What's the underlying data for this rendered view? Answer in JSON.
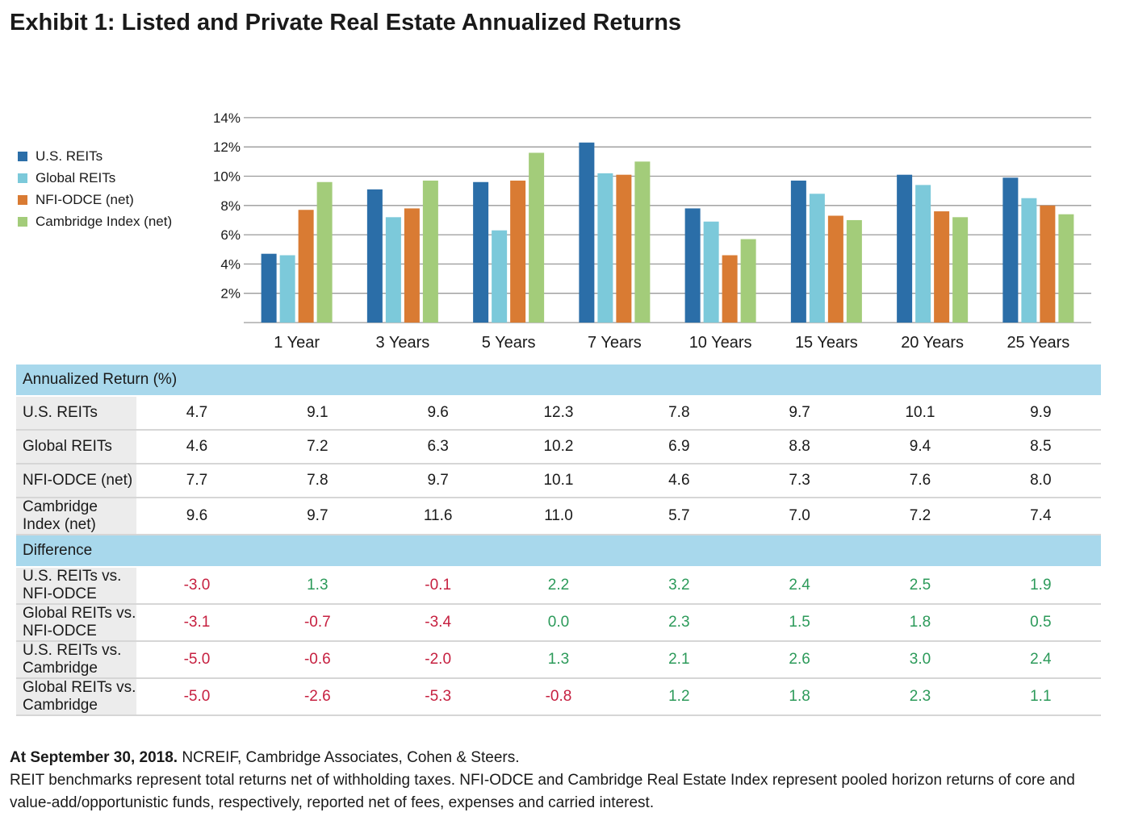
{
  "title": "Exhibit 1: Listed and Private Real Estate Annualized Returns",
  "colors": {
    "us_reits": "#2b6ea8",
    "global_reits": "#7cc9da",
    "nfi_odce": "#d97b33",
    "cambridge": "#a3cc7a",
    "negative": "#c62040",
    "positive": "#2c9a5a",
    "section_header": "#a8d8ec"
  },
  "chart_data": {
    "type": "bar",
    "categories": [
      "1 Year",
      "3 Years",
      "5 Years",
      "7 Years",
      "10 Years",
      "15 Years",
      "20 Years",
      "25 Years"
    ],
    "series": [
      {
        "name": "U.S. REITs",
        "values": [
          4.7,
          9.1,
          9.6,
          12.3,
          7.8,
          9.7,
          10.1,
          9.9
        ]
      },
      {
        "name": "Global REITs",
        "values": [
          4.6,
          7.2,
          6.3,
          10.2,
          6.9,
          8.8,
          9.4,
          8.5
        ]
      },
      {
        "name": "NFI-ODCE (net)",
        "values": [
          7.7,
          7.8,
          9.7,
          10.1,
          4.6,
          7.3,
          7.6,
          8.0
        ]
      },
      {
        "name": "Cambridge Index (net)",
        "values": [
          9.6,
          9.7,
          11.6,
          11.0,
          5.7,
          7.0,
          7.2,
          7.4
        ]
      }
    ],
    "yticks": [
      "2%",
      "4%",
      "6%",
      "8%",
      "10%",
      "12%",
      "14%"
    ],
    "ylim": [
      0,
      14
    ],
    "grid": true,
    "legend_position": "left"
  },
  "table": {
    "section1_label": "Annualized Return (%)",
    "section1_rows": [
      {
        "label": "U.S. REITs",
        "values": [
          "4.7",
          "9.1",
          "9.6",
          "12.3",
          "7.8",
          "9.7",
          "10.1",
          "9.9"
        ]
      },
      {
        "label": "Global REITs",
        "values": [
          "4.6",
          "7.2",
          "6.3",
          "10.2",
          "6.9",
          "8.8",
          "9.4",
          "8.5"
        ]
      },
      {
        "label": "NFI-ODCE (net)",
        "values": [
          "7.7",
          "7.8",
          "9.7",
          "10.1",
          "4.6",
          "7.3",
          "7.6",
          "8.0"
        ]
      },
      {
        "label": "Cambridge Index (net)",
        "values": [
          "9.6",
          "9.7",
          "11.6",
          "11.0",
          "5.7",
          "7.0",
          "7.2",
          "7.4"
        ]
      }
    ],
    "section2_label": "Difference",
    "section2_rows": [
      {
        "label": "U.S. REITs vs. NFI-ODCE",
        "values": [
          "-3.0",
          "1.3",
          "-0.1",
          "2.2",
          "3.2",
          "2.4",
          "2.5",
          "1.9"
        ]
      },
      {
        "label": "Global REITs vs. NFI-ODCE",
        "values": [
          "-3.1",
          "-0.7",
          "-3.4",
          "0.0",
          "2.3",
          "1.5",
          "1.8",
          "0.5"
        ]
      },
      {
        "label": "U.S. REITs vs. Cambridge",
        "values": [
          "-5.0",
          "-0.6",
          "-2.0",
          "1.3",
          "2.1",
          "2.6",
          "3.0",
          "2.4"
        ]
      },
      {
        "label": "Global REITs vs. Cambridge",
        "values": [
          "-5.0",
          "-2.6",
          "-5.3",
          "-0.8",
          "1.2",
          "1.8",
          "2.3",
          "1.1"
        ]
      }
    ]
  },
  "footnote": {
    "date_bold": "At September 30, 2018.",
    "sources": " NCREIF, Cambridge Associates, Cohen & Steers.",
    "text": "REIT benchmarks represent total returns net of withholding taxes. NFI-ODCE and Cambridge Real Estate Index represent pooled horizon returns of core and value-add/opportunistic funds, respectively, reported net of fees, expenses and carried interest."
  }
}
